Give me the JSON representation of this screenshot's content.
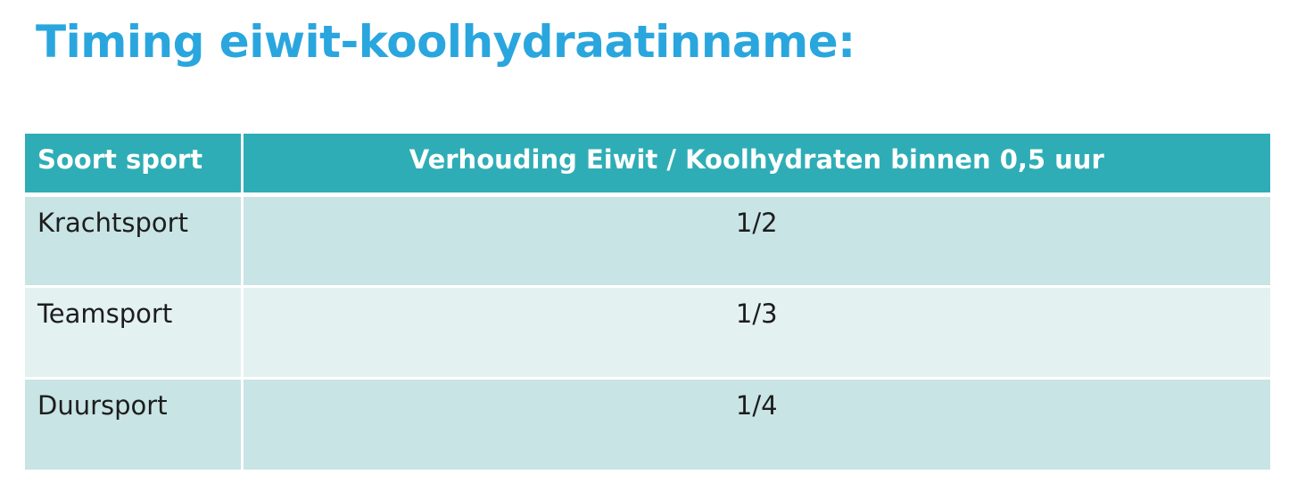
{
  "title": "Timing eiwit-koolhydraatinname:",
  "table": {
    "headers": {
      "sport": "Soort sport",
      "ratio": "Verhouding Eiwit / Koolhydraten binnen 0,5 uur"
    },
    "rows": [
      {
        "sport": "Krachtsport",
        "ratio": "1/2"
      },
      {
        "sport": "Teamsport",
        "ratio": "1/3"
      },
      {
        "sport": "Duursport",
        "ratio": "1/4"
      }
    ]
  },
  "colors": {
    "title": "#2aa6de",
    "header_background": "#2fadb6",
    "row_dark": "#c8e4e5",
    "row_light": "#e4f1f1"
  }
}
